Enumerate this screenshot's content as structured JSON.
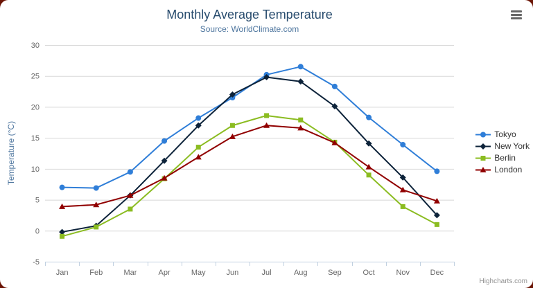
{
  "header": {
    "title": "Monthly Average Temperature",
    "subtitle": "Source: WorldClimate.com",
    "menu_icon": "hamburger-icon"
  },
  "credits": "Highcharts.com",
  "theme": {
    "page_background": "#6b1405",
    "container_background": "#ffffff",
    "title_color": "#274b6d",
    "subtitle_color": "#4d759e",
    "axis_label_color": "#666666",
    "grid_color": "#d8d8d8",
    "axis_line_color": "#c0d0e0",
    "legend_text_color": "#333333",
    "credits_color": "#909090"
  },
  "chart_data": {
    "type": "line",
    "title": "Monthly Average Temperature",
    "subtitle": "Source: WorldClimate.com",
    "xlabel": "",
    "ylabel": "Temperature (°C)",
    "categories": [
      "Jan",
      "Feb",
      "Mar",
      "Apr",
      "May",
      "Jun",
      "Jul",
      "Aug",
      "Sep",
      "Oct",
      "Nov",
      "Dec"
    ],
    "ylim": [
      -5,
      30
    ],
    "ytick_step": 5,
    "grid": true,
    "legend_position": "right",
    "series": [
      {
        "name": "Tokyo",
        "color": "#2f7ed8",
        "marker": "circle",
        "values": [
          7.0,
          6.9,
          9.5,
          14.5,
          18.2,
          21.5,
          25.2,
          26.5,
          23.3,
          18.3,
          13.9,
          9.6
        ]
      },
      {
        "name": "New York",
        "color": "#0d233a",
        "marker": "diamond",
        "values": [
          -0.2,
          0.8,
          5.7,
          11.3,
          17.0,
          22.0,
          24.8,
          24.1,
          20.1,
          14.1,
          8.6,
          2.5
        ]
      },
      {
        "name": "Berlin",
        "color": "#8bbc21",
        "marker": "square",
        "values": [
          -0.9,
          0.6,
          3.5,
          8.4,
          13.5,
          17.0,
          18.6,
          17.9,
          14.3,
          9.0,
          3.9,
          1.0
        ]
      },
      {
        "name": "London",
        "color": "#910000",
        "marker": "triangle",
        "values": [
          3.9,
          4.2,
          5.7,
          8.5,
          11.9,
          15.2,
          17.0,
          16.6,
          14.2,
          10.3,
          6.6,
          4.8
        ]
      }
    ]
  }
}
